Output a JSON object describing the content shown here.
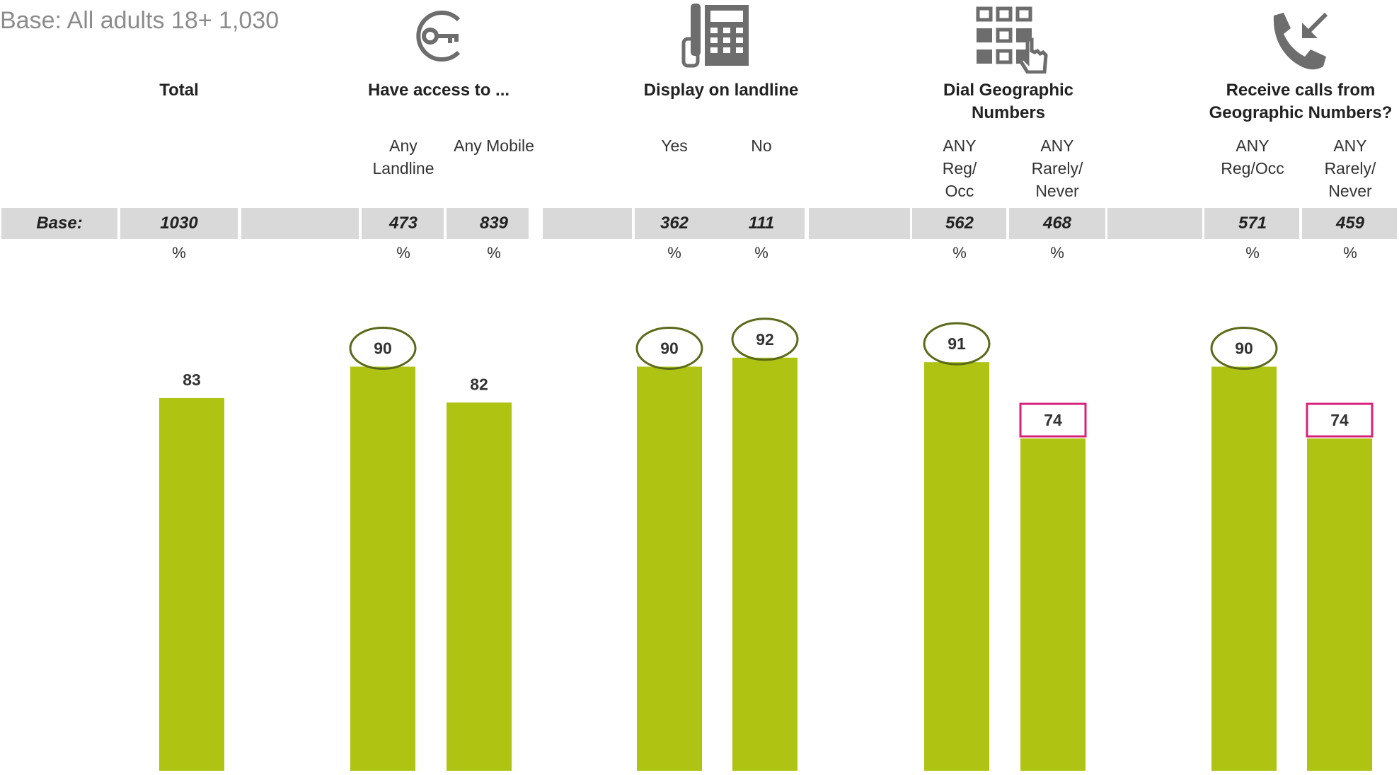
{
  "base_note": "Base: All adults 18+ 1,030",
  "base_row_label": "Base:",
  "icons": [
    "key-icon",
    "desk-phone-icon",
    "keypad-icon",
    "incoming-call-icon"
  ],
  "colors": {
    "bar": "#afc312",
    "ellipse": "#5a6a1a",
    "box": "#d6237a",
    "band": "#d9d9d9"
  },
  "groups": [
    {
      "title": "Total"
    },
    {
      "title": "Have access to ..."
    },
    {
      "title": "Display on landline"
    },
    {
      "title": "Dial Geographic Numbers"
    },
    {
      "title": "Receive calls from Geographic Numbers?"
    }
  ],
  "chart_data": {
    "type": "bar",
    "categories": [
      "Total",
      "Any Landline",
      "Any Mobile",
      "Yes",
      "No",
      "ANY Reg/ Occ",
      "ANY Rarely/ Never",
      "ANY Reg/Occ",
      "ANY Rarely/ Never"
    ],
    "groups": [
      "Total",
      "Have access to ...",
      "Have access to ...",
      "Display on landline",
      "Display on landline",
      "Dial Geographic Numbers",
      "Dial Geographic Numbers",
      "Receive calls from Geographic Numbers?",
      "Receive calls from Geographic Numbers?"
    ],
    "values": [
      83,
      90,
      82,
      90,
      92,
      91,
      74,
      90,
      74
    ],
    "bases": [
      "1030",
      "473",
      "839",
      "362",
      "111",
      "562",
      "468",
      "571",
      "459"
    ],
    "unit": "%",
    "highlight": [
      "none",
      "higher",
      "none",
      "higher",
      "higher",
      "higher",
      "lower",
      "higher",
      "lower"
    ],
    "ylim": [
      0,
      100
    ],
    "grid": false
  }
}
